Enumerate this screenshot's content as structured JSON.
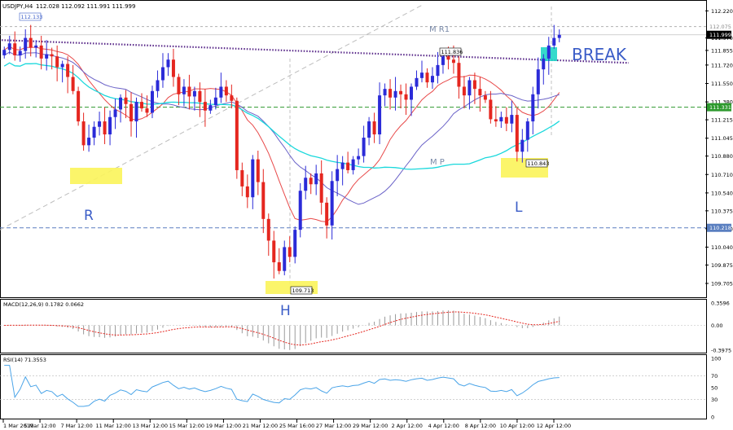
{
  "chart_data": {
    "type": "candlestick",
    "symbol": "USDJPY,H4",
    "ohlc_header": "112.028 112.092 111.991 111.999",
    "price_axis": {
      "ticks": [
        "112.220",
        "111.970",
        "111.855",
        "111.720",
        "111.550",
        "111.380",
        "111.215",
        "111.045",
        "110.880",
        "110.710",
        "110.540",
        "110.375",
        "110.210",
        "110.040",
        "109.875",
        "109.705"
      ],
      "range": [
        109.63,
        112.26
      ]
    },
    "time_axis": {
      "labels": [
        "1 Mar 2019",
        "5 Mar 12:00",
        "7 Mar 12:00",
        "11 Mar 12:00",
        "13 Mar 12:00",
        "15 Mar 12:00",
        "19 Mar 12:00",
        "21 Mar 12:00",
        "25 Mar 16:00",
        "27 Mar 12:00",
        "29 Mar 12:00",
        "2 Apr 12:00",
        "4 Apr 12:00",
        "8 Apr 12:00",
        "10 Apr 12:00",
        "12 Apr 12:00"
      ]
    },
    "closes": [
      111.86,
      111.92,
      111.81,
      111.85,
      111.97,
      111.88,
      111.9,
      111.78,
      111.82,
      111.8,
      111.7,
      111.73,
      111.61,
      111.48,
      111.2,
      110.98,
      111.05,
      111.15,
      111.2,
      111.08,
      111.24,
      111.31,
      111.42,
      111.36,
      111.2,
      111.38,
      111.32,
      111.28,
      111.48,
      111.58,
      111.7,
      111.77,
      111.61,
      111.45,
      111.52,
      111.43,
      111.48,
      111.38,
      111.3,
      111.35,
      111.42,
      111.52,
      111.44,
      111.39,
      110.75,
      110.6,
      110.5,
      110.85,
      110.64,
      110.3,
      110.1,
      109.9,
      109.82,
      110.04,
      109.95,
      110.2,
      110.56,
      110.68,
      110.62,
      110.72,
      110.45,
      110.24,
      110.65,
      110.76,
      110.82,
      110.75,
      110.85,
      110.88,
      111.05,
      111.2,
      111.08,
      111.44,
      111.5,
      111.42,
      111.48,
      111.45,
      111.4,
      111.52,
      111.6,
      111.65,
      111.56,
      111.62,
      111.72,
      111.8,
      111.77,
      111.74,
      111.52,
      111.44,
      111.58,
      111.5,
      111.44,
      111.4,
      111.22,
      111.2,
      111.24,
      111.18,
      111.26,
      110.92,
      111.03,
      111.2,
      111.45,
      111.68,
      111.78,
      111.9,
      111.97,
      111.999
    ],
    "highlights": {
      "low_L_price_label": "110.843",
      "low_H_price_label": "109.713",
      "high_label": "112.133",
      "break_level_label": "111.836",
      "right_axis_current": "111.999",
      "right_axis_r1": "112.075",
      "right_axis_green_line": "111.331",
      "right_axis_blue_line": "110.218"
    },
    "annotations": {
      "r": "R",
      "h": "H",
      "l": "L",
      "break": "BREAK",
      "mr1": "M R1",
      "mp": "M P"
    },
    "macd": {
      "label": "MACD(12,26,9) 0.1782 0.0662",
      "ticks": [
        "0.3596",
        "0.00",
        "-0.3975"
      ]
    },
    "rsi": {
      "label": "RSI(14) 71.3553",
      "ticks": [
        "100",
        "70",
        "50",
        "30",
        "0"
      ]
    }
  }
}
